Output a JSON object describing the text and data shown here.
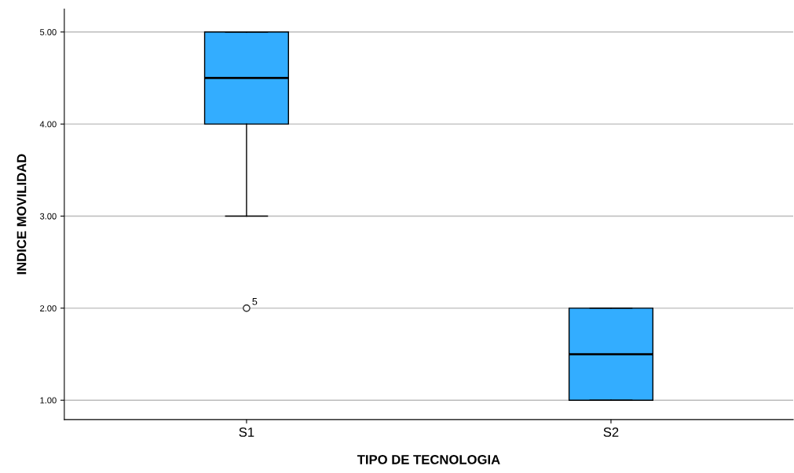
{
  "chart_data": {
    "type": "box",
    "xlabel": "TIPO DE TECNOLOGIA",
    "ylabel": "INDICE MOVILIDAD",
    "categories": [
      "S1",
      "S2"
    ],
    "color": "#33adff",
    "boxes": [
      {
        "low": 3,
        "q1": 4,
        "median": 4.5,
        "q3": 5,
        "high": 5,
        "outliers": [
          2
        ]
      },
      {
        "low": 1,
        "q1": 1,
        "median": 1.5,
        "q3": 2,
        "high": 2
      }
    ],
    "ylim": [
      0.79,
      5.25
    ],
    "yticks": [
      {
        "value": 1,
        "label": "1.00"
      },
      {
        "value": 2,
        "label": "2.00"
      },
      {
        "value": 3,
        "label": "3.00"
      },
      {
        "value": 4,
        "label": "4.00"
      },
      {
        "value": 5,
        "label": "5.00"
      }
    ],
    "grid": "y",
    "annotations": [
      "5"
    ]
  }
}
